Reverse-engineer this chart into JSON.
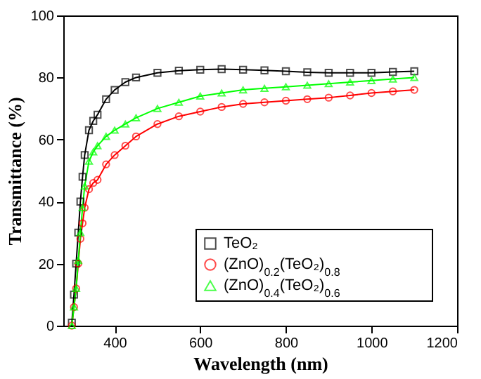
{
  "chart_data": {
    "type": "line",
    "xlabel": "Wavelength (nm)",
    "ylabel": "Transmittance (%)",
    "xlim": [
      280,
      1200
    ],
    "xticks": [
      400,
      600,
      800,
      1000,
      1200
    ],
    "ylim": [
      0,
      100
    ],
    "yticks": [
      0,
      20,
      40,
      60,
      80,
      100
    ],
    "legend": "bottom right",
    "grid": false,
    "x": [
      300,
      305,
      310,
      315,
      320,
      325,
      330,
      340,
      350,
      360,
      380,
      400,
      425,
      450,
      500,
      550,
      600,
      650,
      700,
      750,
      800,
      850,
      900,
      950,
      1000,
      1050,
      1100
    ],
    "series": [
      {
        "name": "TeO₂",
        "color": "#000000",
        "marker": "square",
        "values": [
          1,
          10,
          20,
          30,
          40,
          48,
          55,
          63,
          66,
          68,
          73,
          76,
          78.5,
          80,
          81.5,
          82.2,
          82.5,
          82.7,
          82.5,
          82.3,
          82,
          81.7,
          81.5,
          81.5,
          81.5,
          81.8,
          82
        ]
      },
      {
        "name": "(ZnO)$_{0.2}$(TeO₂)$_{0.8}$",
        "color": "#ff0000",
        "marker": "circle",
        "values": [
          0,
          6,
          12,
          20,
          28,
          33,
          38,
          44,
          46,
          47,
          52,
          55,
          58,
          61,
          65,
          67.5,
          69,
          70.5,
          71.5,
          72,
          72.5,
          73,
          73.5,
          74.2,
          75,
          75.5,
          76
        ]
      },
      {
        "name": "(ZnO)$_{0.4}$(TeO₂)$_{0.6}$",
        "color": "#00ff00",
        "marker": "triangle",
        "values": [
          0,
          6,
          12,
          21,
          30,
          38,
          45,
          53,
          56,
          58,
          61,
          63,
          65,
          67,
          70,
          72,
          74,
          75,
          76,
          76.5,
          77,
          77.5,
          78,
          78.5,
          79,
          79.5,
          80
        ]
      }
    ]
  }
}
